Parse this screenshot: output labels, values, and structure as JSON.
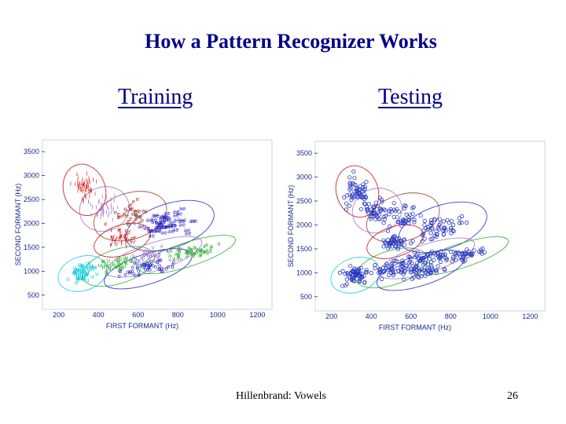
{
  "slide": {
    "title": "How a Pattern Recognizer Works",
    "training_label": "Training",
    "testing_label": "Testing",
    "footer_source": "Hillenbrand: Vowels",
    "page_number": "26"
  },
  "chart_data": [
    {
      "type": "scatter",
      "panel": "Training",
      "xlabel": "FIRST FORMANT (Hz)",
      "ylabel": "SECOND FORMANT (Hz)",
      "xticks": [
        200,
        400,
        600,
        800,
        1000,
        1200
      ],
      "yticks": [
        500,
        1000,
        1500,
        2000,
        2500,
        3000,
        3500
      ],
      "xlim": [
        150,
        1250
      ],
      "ylim": [
        300,
        3650
      ],
      "grid": false,
      "note": "Vowel tokens plotted as letter symbols, colored by vowel class, each class enclosed by an ellipse",
      "colors": [
        "#cc0000",
        "#9b6fd1",
        "#2020c0",
        "#22aa22",
        "#00c8d8",
        "#993322",
        "#66aa33"
      ]
    },
    {
      "type": "scatter",
      "panel": "Testing",
      "xlabel": "FIRST FORMANT (Hz)",
      "ylabel": "SECOND FORMANT (Hz)",
      "xticks": [
        200,
        400,
        600,
        800,
        1000,
        1200
      ],
      "yticks": [
        500,
        1000,
        1500,
        2000,
        2500,
        3000,
        3500
      ],
      "xlim": [
        150,
        1250
      ],
      "ylim": [
        300,
        3650
      ],
      "grid": false,
      "note": "Test tokens plotted as blue circles over the training class ellipses",
      "colors": [
        "#2a3ac0",
        "#cc3333",
        "#33aa33",
        "#9b6fd1",
        "#00b8c8"
      ]
    }
  ]
}
